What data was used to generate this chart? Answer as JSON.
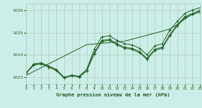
{
  "background_color": "#cceee8",
  "grid_color": "#aaccbb",
  "line_color": "#1a5c1a",
  "title": "Graphe pression niveau de la mer (hPa)",
  "xlim": [
    0,
    23
  ],
  "ylim": [
    1022.7,
    1026.3
  ],
  "yticks": [
    1023,
    1024,
    1025,
    1026
  ],
  "xticks": [
    0,
    1,
    2,
    3,
    4,
    5,
    6,
    7,
    8,
    9,
    10,
    11,
    12,
    13,
    14,
    15,
    16,
    17,
    18,
    19,
    20,
    21,
    22,
    23
  ],
  "line1": [
    1023.2,
    1023.6,
    1023.65,
    1023.5,
    1023.35,
    1023.0,
    1023.1,
    1023.05,
    1023.35,
    1024.25,
    1024.8,
    1024.85,
    1024.65,
    1024.5,
    1024.45,
    1024.3,
    1024.0,
    1024.4,
    1024.5,
    1025.1,
    1025.5,
    1025.85,
    1026.0,
    1026.1
  ],
  "line2": [
    1023.2,
    1023.6,
    1023.65,
    1023.5,
    1023.35,
    1023.0,
    1023.1,
    1023.05,
    1023.35,
    1024.1,
    1024.65,
    1024.7,
    1024.5,
    1024.35,
    1024.3,
    1024.15,
    1023.85,
    1024.25,
    1024.35,
    1024.9,
    1025.35,
    1025.7,
    1025.85,
    1025.95
  ],
  "line3": [
    1023.2,
    1023.55,
    1023.6,
    1023.45,
    1023.3,
    1022.98,
    1023.08,
    1023.02,
    1023.28,
    1024.05,
    1024.6,
    1024.65,
    1024.45,
    1024.3,
    1024.25,
    1024.1,
    1023.8,
    1024.2,
    1024.3,
    1024.85,
    1025.3,
    1025.65,
    1025.8,
    1025.9
  ],
  "line4_trend": [
    1023.1,
    1023.27,
    1023.44,
    1023.61,
    1023.78,
    1023.95,
    1024.12,
    1024.29,
    1024.46,
    1024.49,
    1024.52,
    1024.55,
    1024.58,
    1024.61,
    1024.7,
    1024.79,
    1024.88,
    1024.97,
    1025.06,
    1025.15,
    1025.35,
    1025.6,
    1025.82,
    1026.0
  ]
}
